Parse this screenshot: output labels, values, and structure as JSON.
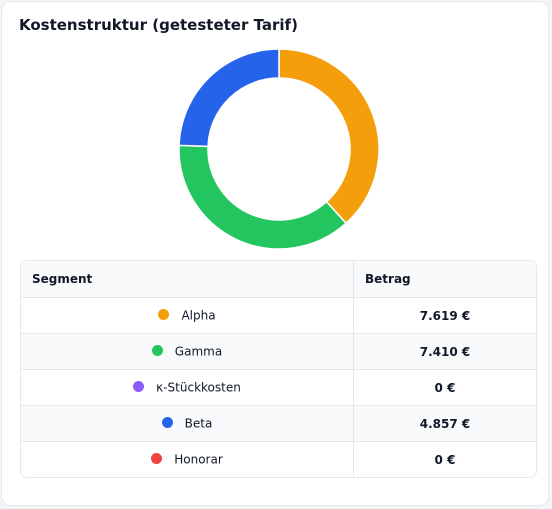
{
  "card": {
    "title": "Kostenstruktur (getesteter Tarif)"
  },
  "table": {
    "headers": {
      "segment": "Segment",
      "amount": "Betrag"
    },
    "rows": [
      {
        "label": "Alpha",
        "amount": "7.619 €",
        "color": "#f59e0b"
      },
      {
        "label": "Gamma",
        "amount": "7.410 €",
        "color": "#22c55e"
      },
      {
        "label": "κ-Stückkosten",
        "amount": "0 €",
        "color": "#8b5cf6"
      },
      {
        "label": "Beta",
        "amount": "4.857 €",
        "color": "#2563eb"
      },
      {
        "label": "Honorar",
        "amount": "0 €",
        "color": "#ef4444"
      }
    ]
  },
  "chart_data": {
    "type": "pie",
    "style": "donut",
    "start_angle_deg": 0,
    "direction": "clockwise",
    "slices": [
      {
        "label": "Alpha",
        "value": 7619,
        "color": "#f59e0b"
      },
      {
        "label": "Gamma",
        "value": 7410,
        "color": "#22c55e"
      },
      {
        "label": "κ-Stückkosten",
        "value": 0,
        "color": "#8b5cf6"
      },
      {
        "label": "Beta",
        "value": 4857,
        "color": "#2563eb"
      },
      {
        "label": "Honorar",
        "value": 0,
        "color": "#ef4444"
      }
    ],
    "legend": "none"
  }
}
